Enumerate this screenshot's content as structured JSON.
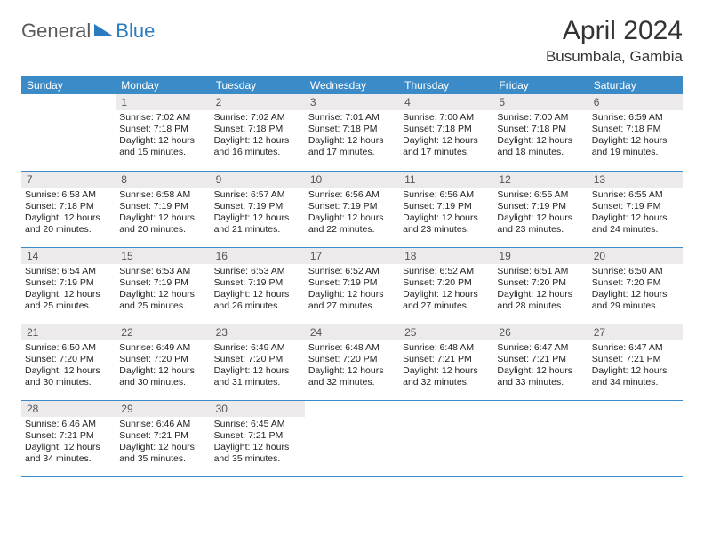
{
  "logo": {
    "part1": "General",
    "part2": "Blue"
  },
  "title": "April 2024",
  "location": "Busumbala, Gambia",
  "colors": {
    "header_bg": "#3b8bc9",
    "header_text": "#ffffff",
    "daynum_bg": "#eceaea",
    "daynum_text": "#555555",
    "body_text": "#222222",
    "row_border": "#3b8bc9",
    "logo_gray": "#5a5a5a",
    "logo_blue": "#2b7bbf"
  },
  "weekdays": [
    "Sunday",
    "Monday",
    "Tuesday",
    "Wednesday",
    "Thursday",
    "Friday",
    "Saturday"
  ],
  "weeks": [
    [
      null,
      {
        "n": "1",
        "sr": "Sunrise: 7:02 AM",
        "ss": "Sunset: 7:18 PM",
        "d1": "Daylight: 12 hours",
        "d2": "and 15 minutes."
      },
      {
        "n": "2",
        "sr": "Sunrise: 7:02 AM",
        "ss": "Sunset: 7:18 PM",
        "d1": "Daylight: 12 hours",
        "d2": "and 16 minutes."
      },
      {
        "n": "3",
        "sr": "Sunrise: 7:01 AM",
        "ss": "Sunset: 7:18 PM",
        "d1": "Daylight: 12 hours",
        "d2": "and 17 minutes."
      },
      {
        "n": "4",
        "sr": "Sunrise: 7:00 AM",
        "ss": "Sunset: 7:18 PM",
        "d1": "Daylight: 12 hours",
        "d2": "and 17 minutes."
      },
      {
        "n": "5",
        "sr": "Sunrise: 7:00 AM",
        "ss": "Sunset: 7:18 PM",
        "d1": "Daylight: 12 hours",
        "d2": "and 18 minutes."
      },
      {
        "n": "6",
        "sr": "Sunrise: 6:59 AM",
        "ss": "Sunset: 7:18 PM",
        "d1": "Daylight: 12 hours",
        "d2": "and 19 minutes."
      }
    ],
    [
      {
        "n": "7",
        "sr": "Sunrise: 6:58 AM",
        "ss": "Sunset: 7:18 PM",
        "d1": "Daylight: 12 hours",
        "d2": "and 20 minutes."
      },
      {
        "n": "8",
        "sr": "Sunrise: 6:58 AM",
        "ss": "Sunset: 7:19 PM",
        "d1": "Daylight: 12 hours",
        "d2": "and 20 minutes."
      },
      {
        "n": "9",
        "sr": "Sunrise: 6:57 AM",
        "ss": "Sunset: 7:19 PM",
        "d1": "Daylight: 12 hours",
        "d2": "and 21 minutes."
      },
      {
        "n": "10",
        "sr": "Sunrise: 6:56 AM",
        "ss": "Sunset: 7:19 PM",
        "d1": "Daylight: 12 hours",
        "d2": "and 22 minutes."
      },
      {
        "n": "11",
        "sr": "Sunrise: 6:56 AM",
        "ss": "Sunset: 7:19 PM",
        "d1": "Daylight: 12 hours",
        "d2": "and 23 minutes."
      },
      {
        "n": "12",
        "sr": "Sunrise: 6:55 AM",
        "ss": "Sunset: 7:19 PM",
        "d1": "Daylight: 12 hours",
        "d2": "and 23 minutes."
      },
      {
        "n": "13",
        "sr": "Sunrise: 6:55 AM",
        "ss": "Sunset: 7:19 PM",
        "d1": "Daylight: 12 hours",
        "d2": "and 24 minutes."
      }
    ],
    [
      {
        "n": "14",
        "sr": "Sunrise: 6:54 AM",
        "ss": "Sunset: 7:19 PM",
        "d1": "Daylight: 12 hours",
        "d2": "and 25 minutes."
      },
      {
        "n": "15",
        "sr": "Sunrise: 6:53 AM",
        "ss": "Sunset: 7:19 PM",
        "d1": "Daylight: 12 hours",
        "d2": "and 25 minutes."
      },
      {
        "n": "16",
        "sr": "Sunrise: 6:53 AM",
        "ss": "Sunset: 7:19 PM",
        "d1": "Daylight: 12 hours",
        "d2": "and 26 minutes."
      },
      {
        "n": "17",
        "sr": "Sunrise: 6:52 AM",
        "ss": "Sunset: 7:19 PM",
        "d1": "Daylight: 12 hours",
        "d2": "and 27 minutes."
      },
      {
        "n": "18",
        "sr": "Sunrise: 6:52 AM",
        "ss": "Sunset: 7:20 PM",
        "d1": "Daylight: 12 hours",
        "d2": "and 27 minutes."
      },
      {
        "n": "19",
        "sr": "Sunrise: 6:51 AM",
        "ss": "Sunset: 7:20 PM",
        "d1": "Daylight: 12 hours",
        "d2": "and 28 minutes."
      },
      {
        "n": "20",
        "sr": "Sunrise: 6:50 AM",
        "ss": "Sunset: 7:20 PM",
        "d1": "Daylight: 12 hours",
        "d2": "and 29 minutes."
      }
    ],
    [
      {
        "n": "21",
        "sr": "Sunrise: 6:50 AM",
        "ss": "Sunset: 7:20 PM",
        "d1": "Daylight: 12 hours",
        "d2": "and 30 minutes."
      },
      {
        "n": "22",
        "sr": "Sunrise: 6:49 AM",
        "ss": "Sunset: 7:20 PM",
        "d1": "Daylight: 12 hours",
        "d2": "and 30 minutes."
      },
      {
        "n": "23",
        "sr": "Sunrise: 6:49 AM",
        "ss": "Sunset: 7:20 PM",
        "d1": "Daylight: 12 hours",
        "d2": "and 31 minutes."
      },
      {
        "n": "24",
        "sr": "Sunrise: 6:48 AM",
        "ss": "Sunset: 7:20 PM",
        "d1": "Daylight: 12 hours",
        "d2": "and 32 minutes."
      },
      {
        "n": "25",
        "sr": "Sunrise: 6:48 AM",
        "ss": "Sunset: 7:21 PM",
        "d1": "Daylight: 12 hours",
        "d2": "and 32 minutes."
      },
      {
        "n": "26",
        "sr": "Sunrise: 6:47 AM",
        "ss": "Sunset: 7:21 PM",
        "d1": "Daylight: 12 hours",
        "d2": "and 33 minutes."
      },
      {
        "n": "27",
        "sr": "Sunrise: 6:47 AM",
        "ss": "Sunset: 7:21 PM",
        "d1": "Daylight: 12 hours",
        "d2": "and 34 minutes."
      }
    ],
    [
      {
        "n": "28",
        "sr": "Sunrise: 6:46 AM",
        "ss": "Sunset: 7:21 PM",
        "d1": "Daylight: 12 hours",
        "d2": "and 34 minutes."
      },
      {
        "n": "29",
        "sr": "Sunrise: 6:46 AM",
        "ss": "Sunset: 7:21 PM",
        "d1": "Daylight: 12 hours",
        "d2": "and 35 minutes."
      },
      {
        "n": "30",
        "sr": "Sunrise: 6:45 AM",
        "ss": "Sunset: 7:21 PM",
        "d1": "Daylight: 12 hours",
        "d2": "and 35 minutes."
      },
      null,
      null,
      null,
      null
    ]
  ]
}
